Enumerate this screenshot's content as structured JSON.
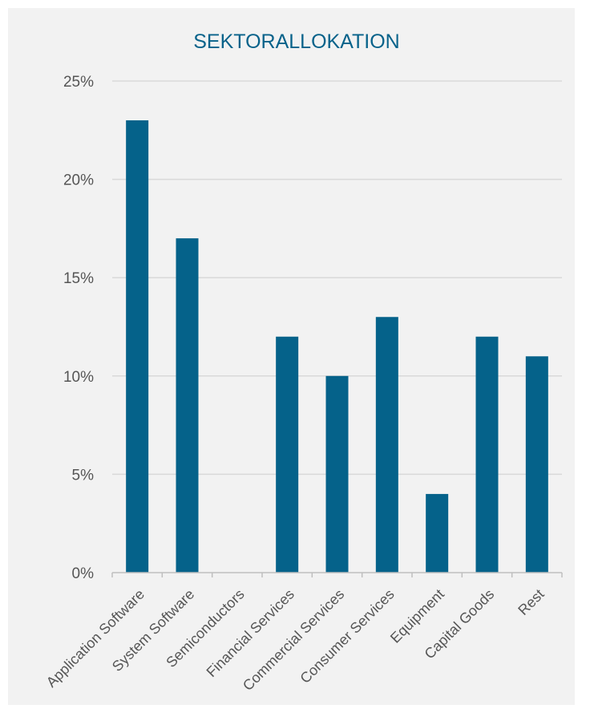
{
  "chart_data": {
    "type": "bar",
    "title": "SEKTORALLOKATION",
    "xlabel": "",
    "ylabel": "",
    "categories": [
      "Application Software",
      "System Software",
      "Semiconductors",
      "Financial Services",
      "Commercial Services",
      "Consumer Services",
      "Equipment",
      "Capital Goods",
      "Rest"
    ],
    "values": [
      23,
      17,
      0,
      12,
      10,
      13,
      4,
      12,
      11
    ],
    "ylim": [
      0,
      25
    ],
    "yticks": [
      0,
      5,
      10,
      15,
      20,
      25
    ],
    "ytick_labels": [
      "0%",
      "5%",
      "10%",
      "15%",
      "20%",
      "25%"
    ],
    "grid": true,
    "legend": "none",
    "colors": {
      "bar": "#05628a",
      "title": "#07628a",
      "background": "#f2f2f2",
      "grid": "#d9d9d9"
    }
  }
}
